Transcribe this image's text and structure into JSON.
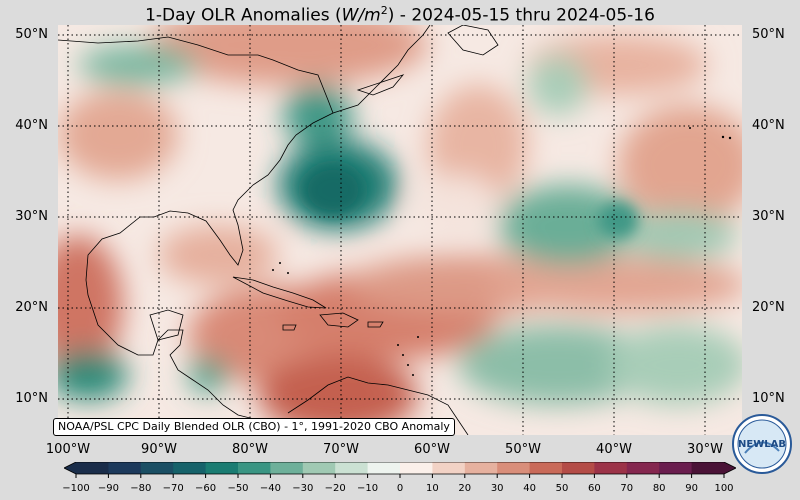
{
  "title": "1-Day OLR Anomalies (W/m²) - 2024-05-15 thru 2024-05-16",
  "title_parts": {
    "prefix": "1-Day OLR Anomalies (",
    "unit_var": "W/m",
    "unit_exp": "2",
    "suffix": ") - 2024-05-15 thru 2024-05-16"
  },
  "map": {
    "lat_labels": [
      "50°N",
      "40°N",
      "30°N",
      "20°N",
      "10°N"
    ],
    "lon_labels": [
      "100°W",
      "90°W",
      "80°W",
      "70°W",
      "60°W",
      "50°W",
      "40°W",
      "30°W"
    ],
    "credit": "NOAA/PSL CPC Daily Blended OLR (CBO) - 1°, 1991-2020 CBO Anomaly",
    "gridlines": "dotted",
    "positive_color": "#c0604f",
    "negative_color": "#2a8a74",
    "neutral_color": "#faf3ef"
  },
  "colorbar": {
    "ticks": [
      "−100",
      "−90",
      "−80",
      "−70",
      "−60",
      "−50",
      "−40",
      "−30",
      "−20",
      "−10",
      "0",
      "10",
      "20",
      "30",
      "40",
      "50",
      "60",
      "70",
      "80",
      "90",
      "100"
    ],
    "colors": [
      "#1a2d4a",
      "#1d3a5c",
      "#1b4f64",
      "#16626a",
      "#1a7c72",
      "#3a9583",
      "#6eb09a",
      "#a0c9b3",
      "#cbe1d3",
      "#eef4ef",
      "#fbf0ea",
      "#f2d2c5",
      "#e6b19f",
      "#d98e7a",
      "#c96a59",
      "#b44c47",
      "#9c3348",
      "#85274f",
      "#6a1d4e",
      "#4a1236"
    ]
  },
  "logo": {
    "text": "NEWLAB"
  }
}
